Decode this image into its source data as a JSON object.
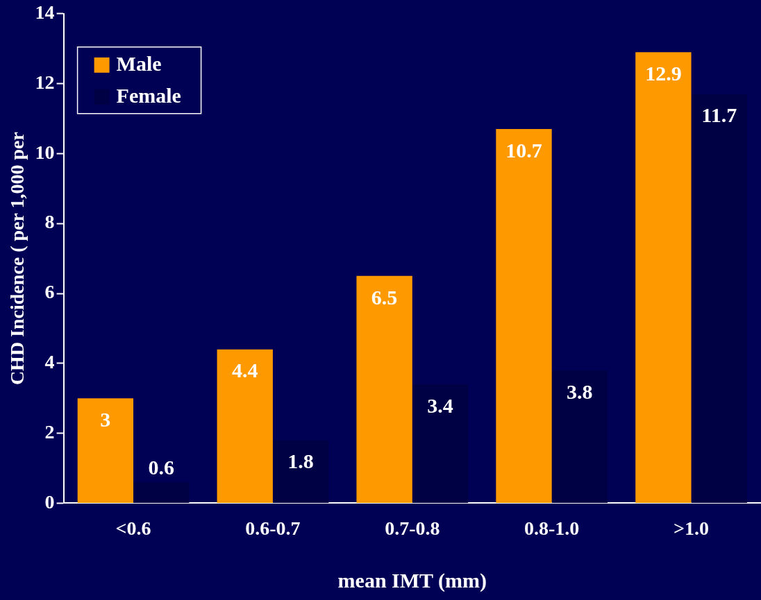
{
  "chart_data": {
    "type": "bar",
    "xlabel": "mean IMT (mm)",
    "ylabel": "CHD Incidence ( per 1,000 per",
    "categories": [
      "<0.6",
      "0.6-0.7",
      "0.7-0.8",
      "0.8-1.0",
      ">1.0"
    ],
    "series": [
      {
        "name": "Male",
        "color": "#ff9900",
        "values": [
          3,
          4.4,
          6.5,
          10.7,
          12.9
        ]
      },
      {
        "name": "Female",
        "color": "#000044",
        "values": [
          0.6,
          1.8,
          3.4,
          3.8,
          11.7
        ]
      }
    ],
    "ylim": [
      0,
      14
    ],
    "yticks": [
      0,
      2,
      4,
      6,
      8,
      10,
      12,
      14
    ],
    "grid": false,
    "legend": "top left",
    "data_labels": true
  }
}
